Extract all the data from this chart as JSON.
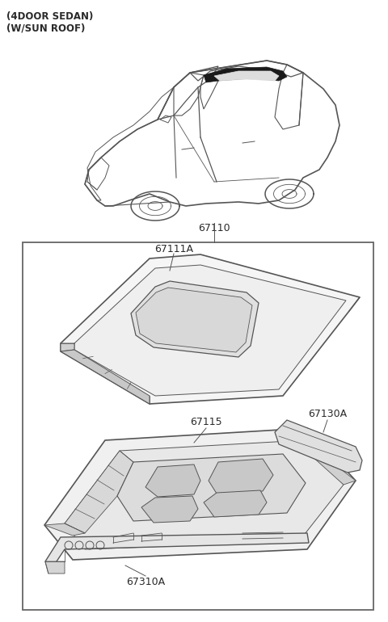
{
  "title_line1": "(4DOOR SEDAN)",
  "title_line2": "(W/SUN ROOF)",
  "bg_color": "#ffffff",
  "line_color": "#555555",
  "text_color": "#2a2a2a",
  "figsize": [
    4.8,
    7.7
  ],
  "dpi": 100,
  "label_67110": "67110",
  "label_67111A": "67111A",
  "label_67115": "67115",
  "label_67130A": "67130A",
  "label_67310A": "67310A"
}
